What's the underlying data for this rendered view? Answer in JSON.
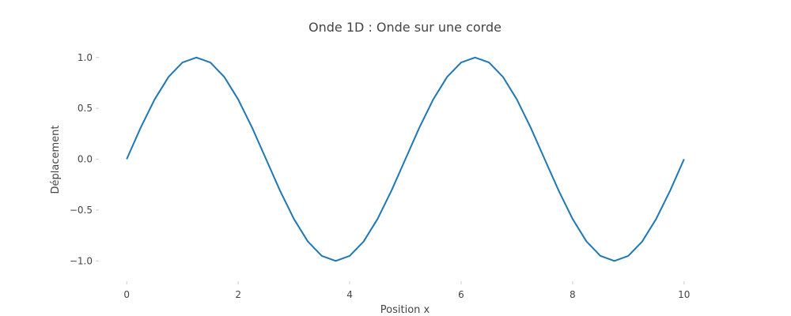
{
  "chart_data": {
    "type": "line",
    "title": "Onde 1D : Onde sur une corde",
    "xlabel": "Position x",
    "ylabel": "Déplacement",
    "xlim": [
      -0.5,
      10.5
    ],
    "ylim": [
      -1.2,
      1.2
    ],
    "grid": false,
    "xticks": [
      0,
      2,
      4,
      6,
      8,
      10
    ],
    "xtick_labels": [
      "0",
      "2",
      "4",
      "6",
      "8",
      "10"
    ],
    "yticks": [
      -1.0,
      -0.5,
      0.0,
      0.5,
      1.0
    ],
    "ytick_labels": [
      "−1.0",
      "−0.5",
      "0.0",
      "0.5",
      "1.0"
    ],
    "series": [
      {
        "color": "#1f77b4",
        "x": [
          0,
          0.25,
          0.5,
          0.75,
          1.0,
          1.25,
          1.5,
          1.75,
          2.0,
          2.25,
          2.5,
          2.75,
          3.0,
          3.25,
          3.5,
          3.75,
          4.0,
          4.25,
          4.5,
          4.75,
          5.0,
          5.25,
          5.5,
          5.75,
          6.0,
          6.25,
          6.5,
          6.75,
          7.0,
          7.25,
          7.5,
          7.75,
          8.0,
          8.25,
          8.5,
          8.75,
          9.0,
          9.25,
          9.5,
          9.75,
          10.0
        ],
        "y": [
          0.0,
          0.309,
          0.588,
          0.809,
          0.951,
          1.0,
          0.951,
          0.809,
          0.588,
          0.309,
          0.0,
          -0.309,
          -0.588,
          -0.809,
          -0.951,
          -1.0,
          -0.951,
          -0.809,
          -0.588,
          -0.309,
          0.0,
          0.309,
          0.588,
          0.809,
          0.951,
          1.0,
          0.951,
          0.809,
          0.588,
          0.309,
          0.0,
          -0.309,
          -0.588,
          -0.809,
          -0.951,
          -1.0,
          -0.951,
          -0.809,
          -0.588,
          -0.309,
          0.0
        ]
      }
    ]
  }
}
